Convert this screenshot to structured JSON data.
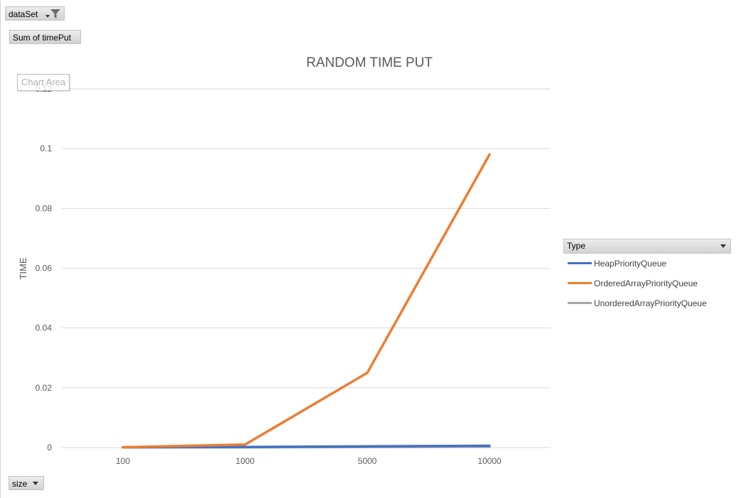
{
  "filters": {
    "report_filter": "dataSet",
    "value_field": "Sum of timePut",
    "axis_field": "size",
    "legend_field": "Type"
  },
  "tooltip": "Chart Area",
  "colors": {
    "HeapPriorityQueue": "#4472c4",
    "OrderedArrayPriorityQueue": "#ed7d31",
    "UnorderedArrayPriorityQueue": "#a5a5a5",
    "gridline": "#d9d9d9"
  },
  "icons": {
    "filter": "funnel-icon",
    "dropdown": "caret-down-icon"
  },
  "chart_data": {
    "type": "line",
    "title": "RANDOM TIME PUT",
    "xlabel": "",
    "ylabel": "TIME",
    "categories": [
      "100",
      "1000",
      "5000",
      "10000"
    ],
    "ylim": [
      0,
      0.12
    ],
    "yticks": [
      "0",
      "0.02",
      "0.04",
      "0.06",
      "0.08",
      "0.1",
      "0.12"
    ],
    "grid": true,
    "legend_position": "right",
    "series": [
      {
        "name": "HeapPriorityQueue",
        "values": [
          0.0001,
          0.0002,
          0.0004,
          0.0006
        ]
      },
      {
        "name": "OrderedArrayPriorityQueue",
        "values": [
          0.0001,
          0.001,
          0.025,
          0.098
        ]
      },
      {
        "name": "UnorderedArrayPriorityQueue",
        "values": [
          0.0001,
          0.0001,
          0.0002,
          0.0003
        ]
      }
    ]
  }
}
